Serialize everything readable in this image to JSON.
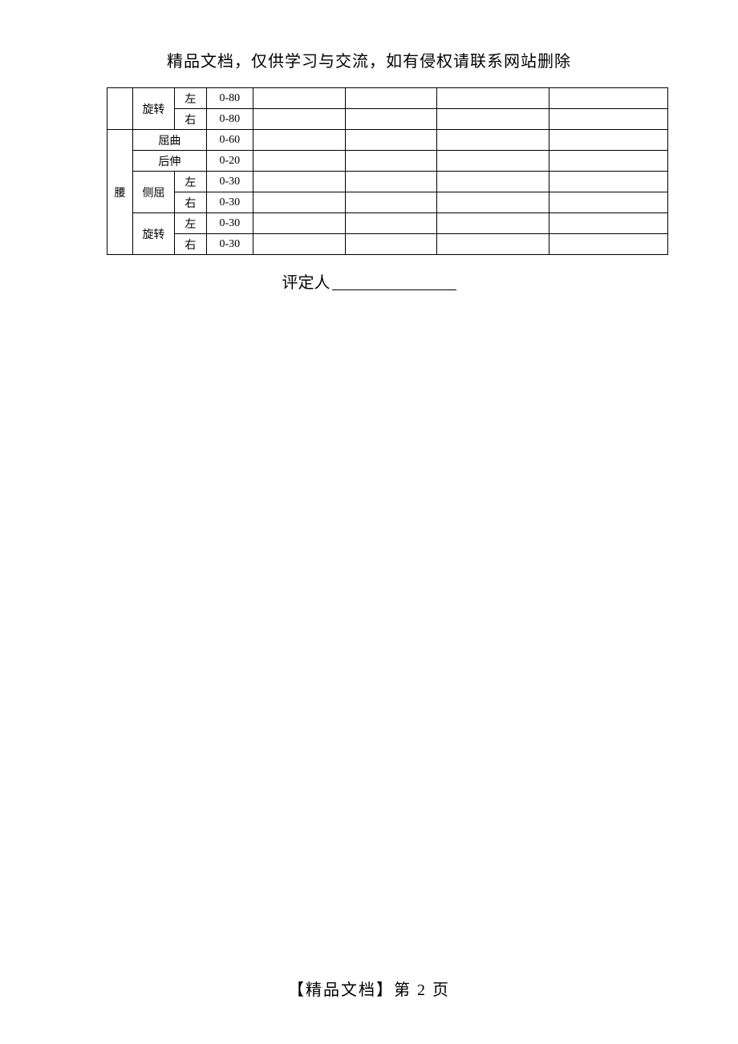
{
  "header": {
    "text": "精品文档，仅供学习与交流，如有侵权请联系网站删除"
  },
  "table": {
    "colors": {
      "border": "#000000",
      "background": "#ffffff",
      "text": "#000000"
    },
    "font_size": 14,
    "rows": [
      {
        "region": "",
        "region_rowspan": 2,
        "region_show": true,
        "motion": "旋转",
        "motion_rowspan": 2,
        "motion_colspan": 1,
        "side": "左",
        "range": "0-80",
        "c1": "",
        "c2": "",
        "c3": "",
        "c4": ""
      },
      {
        "side": "右",
        "range": "0-80",
        "c1": "",
        "c2": "",
        "c3": "",
        "c4": ""
      },
      {
        "region": "腰",
        "region_rowspan": 6,
        "region_show": true,
        "motion": "屈曲",
        "motion_colspan": 2,
        "side_hidden": true,
        "range": "0-60",
        "c1": "",
        "c2": "",
        "c3": "",
        "c4": ""
      },
      {
        "motion": "后伸",
        "motion_colspan": 2,
        "side_hidden": true,
        "range": "0-20",
        "c1": "",
        "c2": "",
        "c3": "",
        "c4": ""
      },
      {
        "motion": "侧屈",
        "motion_rowspan": 2,
        "motion_colspan": 1,
        "side": "左",
        "range": "0-30",
        "c1": "",
        "c2": "",
        "c3": "",
        "c4": ""
      },
      {
        "side": "右",
        "range": "0-30",
        "c1": "",
        "c2": "",
        "c3": "",
        "c4": ""
      },
      {
        "motion": "旋转",
        "motion_rowspan": 2,
        "motion_colspan": 1,
        "side": "左",
        "range": "0-30",
        "c1": "",
        "c2": "",
        "c3": "",
        "c4": ""
      },
      {
        "side": "右",
        "range": "0-30",
        "c1": "",
        "c2": "",
        "c3": "",
        "c4": ""
      }
    ]
  },
  "assessor": {
    "label": "评定人"
  },
  "footer": {
    "text": "【精品文档】第 2 页"
  }
}
